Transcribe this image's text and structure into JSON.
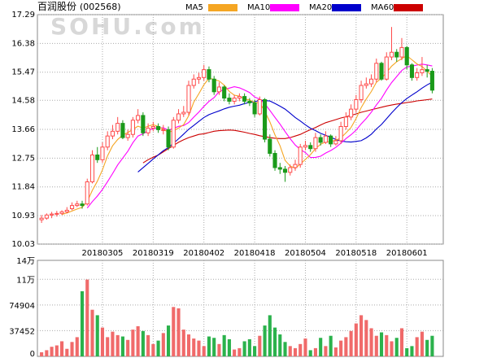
{
  "header": {
    "title": "百润股份",
    "code": "(002568)",
    "watermark": "SOHU.com"
  },
  "legend": [
    {
      "label": "MA5",
      "color": "#f5a623"
    },
    {
      "label": "MA10",
      "color": "#ff00ff"
    },
    {
      "label": "MA20",
      "color": "#0000cc"
    },
    {
      "label": "MA60",
      "color": "#cc0000"
    }
  ],
  "colors": {
    "up": "#ff4a4a",
    "down": "#1a9a1a",
    "grid": "#aaaaaa",
    "axis": "#000000",
    "volume_up": "#f06a6a",
    "volume_down": "#2bb24c"
  },
  "chart_data": [
    {
      "type": "candlestick",
      "title": "",
      "xlabel": "",
      "ylabel": "",
      "ylim": [
        10.03,
        17.29
      ],
      "y_ticks": [
        "17.29",
        "16.38",
        "15.47",
        "14.58",
        "13.66",
        "12.75",
        "11.84",
        "10.93",
        "10.03"
      ],
      "x_tick_labels": [
        "20180305",
        "20180319",
        "20180402",
        "20180418",
        "20180504",
        "20180518",
        "20180601"
      ],
      "x_tick_index": [
        12,
        22,
        32,
        42,
        52,
        62,
        72
      ],
      "legend": "top",
      "grid": true,
      "close": [
        10.85,
        10.95,
        10.98,
        11.0,
        11.05,
        11.1,
        11.25,
        11.3,
        11.25,
        12.0,
        12.85,
        12.7,
        13.1,
        13.45,
        13.6,
        13.85,
        13.4,
        13.5,
        13.95,
        14.1,
        13.55,
        13.7,
        13.75,
        13.65,
        13.65,
        13.1,
        13.95,
        14.15,
        14.2,
        15.05,
        15.25,
        15.3,
        15.55,
        15.25,
        14.85,
        15.0,
        14.65,
        14.55,
        14.65,
        14.7,
        14.55,
        14.5,
        14.15,
        14.6,
        13.35,
        12.9,
        12.45,
        12.4,
        12.3,
        12.45,
        12.55,
        13.1,
        13.15,
        13.05,
        13.4,
        13.25,
        13.45,
        13.2,
        13.3,
        13.75,
        14.05,
        14.3,
        14.6,
        15.05,
        15.1,
        15.25,
        15.75,
        15.25,
        15.95,
        16.1,
        15.95,
        16.25,
        15.7,
        15.3,
        15.45,
        15.55,
        15.5,
        14.9
      ],
      "open": [
        10.8,
        10.85,
        10.95,
        10.98,
        11.0,
        11.05,
        11.15,
        11.25,
        11.3,
        11.3,
        12.0,
        12.85,
        12.7,
        13.1,
        13.45,
        13.6,
        13.85,
        13.4,
        13.5,
        13.95,
        14.1,
        13.55,
        13.7,
        13.75,
        13.65,
        13.65,
        13.1,
        13.95,
        14.15,
        14.2,
        15.05,
        15.25,
        15.3,
        15.55,
        15.25,
        14.85,
        15.0,
        14.65,
        14.55,
        14.65,
        14.7,
        14.55,
        14.5,
        14.15,
        14.6,
        13.35,
        12.9,
        12.45,
        12.4,
        12.3,
        12.45,
        12.55,
        13.1,
        13.15,
        13.05,
        13.4,
        13.25,
        13.45,
        13.2,
        13.3,
        13.75,
        14.05,
        14.3,
        14.6,
        15.05,
        15.1,
        15.25,
        15.75,
        15.25,
        15.95,
        16.1,
        15.95,
        16.25,
        15.7,
        15.3,
        15.45,
        15.55,
        15.5
      ],
      "high": [
        10.95,
        11.0,
        11.05,
        11.08,
        11.1,
        11.2,
        11.35,
        11.4,
        11.4,
        12.1,
        13.0,
        13.1,
        13.25,
        13.6,
        13.8,
        14.05,
        13.95,
        13.65,
        14.05,
        14.3,
        14.2,
        13.85,
        13.9,
        13.85,
        13.8,
        13.75,
        14.05,
        14.3,
        14.4,
        15.2,
        15.4,
        15.45,
        15.7,
        15.65,
        15.35,
        15.15,
        15.05,
        14.8,
        14.75,
        14.8,
        14.8,
        14.65,
        14.6,
        14.7,
        14.65,
        13.5,
        13.0,
        12.6,
        12.5,
        12.55,
        12.7,
        13.2,
        13.3,
        13.25,
        13.55,
        13.5,
        13.6,
        13.5,
        13.45,
        13.9,
        14.2,
        14.45,
        14.75,
        15.2,
        15.3,
        15.4,
        15.9,
        15.8,
        16.1,
        16.9,
        16.2,
        16.55,
        16.3,
        15.75,
        15.6,
        15.95,
        15.7,
        15.6
      ],
      "low": [
        10.7,
        10.8,
        10.85,
        10.9,
        10.95,
        11.0,
        11.1,
        11.2,
        11.15,
        11.25,
        11.95,
        12.6,
        12.6,
        13.0,
        13.35,
        13.5,
        13.35,
        13.3,
        13.4,
        13.85,
        13.45,
        13.45,
        13.6,
        13.55,
        13.5,
        13.0,
        13.05,
        13.85,
        14.05,
        14.1,
        14.95,
        15.1,
        15.2,
        15.15,
        14.75,
        14.75,
        14.55,
        14.45,
        14.45,
        14.55,
        14.45,
        14.4,
        14.05,
        14.1,
        13.25,
        12.8,
        12.35,
        12.25,
        12.0,
        12.2,
        12.35,
        12.45,
        13.0,
        12.95,
        12.95,
        13.15,
        13.2,
        13.1,
        13.15,
        13.2,
        13.65,
        13.95,
        14.2,
        14.5,
        14.95,
        15.0,
        15.15,
        15.2,
        15.2,
        15.85,
        15.8,
        15.85,
        15.55,
        15.2,
        15.2,
        15.35,
        15.3,
        14.8
      ],
      "ma_ylim_note": "",
      "ma60_start": 20,
      "ma60": [
        12.6,
        12.7,
        12.78,
        12.85,
        12.95,
        13.05,
        13.15,
        13.25,
        13.33,
        13.4,
        13.45,
        13.5,
        13.52,
        13.56,
        13.6,
        13.62,
        13.63,
        13.64,
        13.63,
        13.6,
        13.57,
        13.53,
        13.5,
        13.46,
        13.43,
        13.4,
        13.38,
        13.37,
        13.37,
        13.4,
        13.45,
        13.5,
        13.58,
        13.65,
        13.72,
        13.8,
        13.87,
        13.92,
        13.97,
        14.02,
        14.06,
        14.1,
        14.15,
        14.2,
        14.24,
        14.28,
        14.32,
        14.36,
        14.4,
        14.43,
        14.46,
        14.48,
        14.51,
        14.53,
        14.56,
        14.58,
        14.6,
        14.62
      ]
    },
    {
      "type": "bar",
      "title": "",
      "xlabel": "",
      "ylabel": "",
      "ylim": [
        0,
        140000
      ],
      "y_ticks": [
        "14万",
        "11万",
        "74904",
        "37452",
        "0"
      ],
      "y_tick_values": [
        140000,
        112356,
        74904,
        37452,
        0
      ],
      "values": [
        6000,
        9000,
        14000,
        16000,
        22000,
        11000,
        21000,
        28000,
        95000,
        112000,
        68000,
        60000,
        42000,
        28000,
        36000,
        31000,
        29000,
        24000,
        39000,
        44000,
        37000,
        31000,
        18000,
        23000,
        34000,
        45000,
        72000,
        70000,
        39000,
        32000,
        26000,
        23000,
        15000,
        29000,
        27000,
        18000,
        31000,
        25000,
        10000,
        12000,
        22000,
        25000,
        15000,
        30000,
        45000,
        60000,
        42000,
        32000,
        21000,
        15000,
        12000,
        18000,
        26000,
        9000,
        12000,
        27000,
        15000,
        30000,
        13000,
        23000,
        28000,
        37000,
        48000,
        60000,
        53000,
        41000,
        30000,
        35000,
        31000,
        22000,
        27000,
        41000,
        12000,
        15000,
        28000,
        36000,
        24000,
        30000
      ]
    }
  ]
}
